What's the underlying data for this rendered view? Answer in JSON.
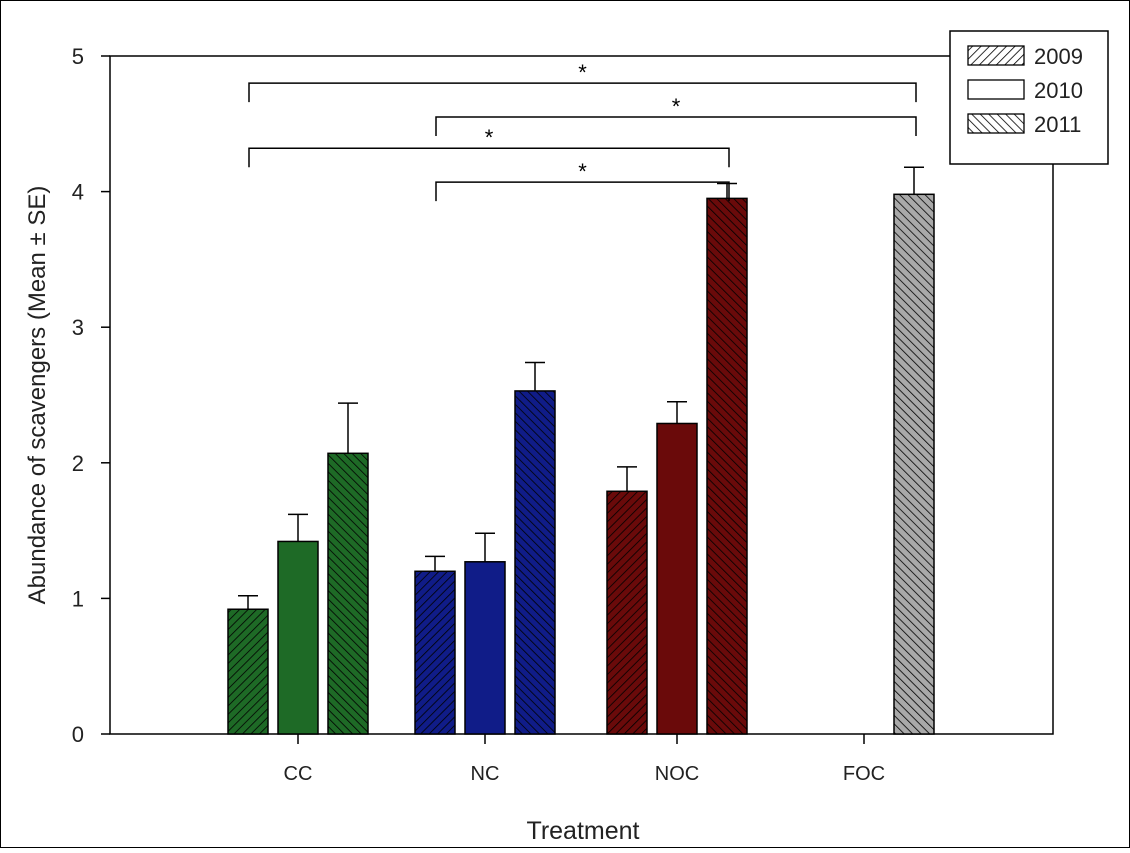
{
  "chart_data": {
    "type": "bar",
    "xlabel": "Treatment",
    "ylabel": "Abundance of scavengers (Mean ± SE)",
    "ylim": [
      0,
      5
    ],
    "yticks": [
      "0",
      "1",
      "2",
      "3",
      "4",
      "5"
    ],
    "grid": false,
    "legend_placement": "top-right",
    "categories": [
      "CC",
      "NC",
      "NOC",
      "FOC"
    ],
    "category_colors": [
      "#1e6a26",
      "#101c88",
      "#6a0a0a",
      "#a9a9a9"
    ],
    "series": [
      {
        "name": "2009",
        "pattern": "hatch-right",
        "values": [
          0.92,
          1.2,
          1.79,
          null
        ],
        "errors": [
          0.1,
          0.11,
          0.18,
          null
        ]
      },
      {
        "name": "2010",
        "pattern": "solid",
        "values": [
          1.42,
          1.27,
          2.29,
          null
        ],
        "errors": [
          0.2,
          0.21,
          0.16,
          null
        ]
      },
      {
        "name": "2011",
        "pattern": "hatch-left",
        "values": [
          2.07,
          2.53,
          3.95,
          3.98
        ],
        "errors": [
          0.37,
          0.21,
          0.11,
          0.2
        ]
      }
    ],
    "annotations": [
      {
        "label": "*",
        "from": "CC",
        "to": "FOC",
        "y": 4.8
      },
      {
        "label": "*",
        "from": "NC",
        "to": "FOC",
        "y": 4.55
      },
      {
        "label": "*",
        "from": "CC",
        "to": "NOC",
        "y": 4.32
      },
      {
        "label": "*",
        "from": "NC",
        "to": "NOC",
        "y": 4.07
      }
    ]
  }
}
